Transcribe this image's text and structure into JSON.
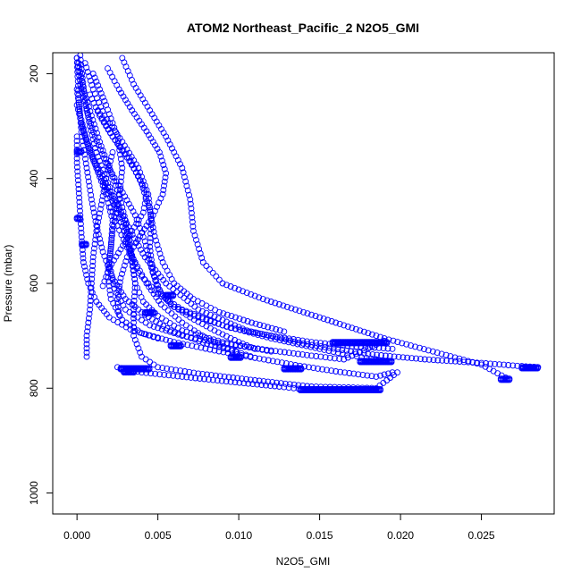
{
  "chart_data": {
    "type": "scatter",
    "title": "ATOM2 Northeast_Pacific_2 N2O5_GMI",
    "xlabel": "N2O5_GMI",
    "ylabel": "Pressure (mbar)",
    "xlim": [
      -0.0015,
      0.0295
    ],
    "ylim": [
      1040,
      160
    ],
    "y_reversed": true,
    "x_ticks": [
      "0.000",
      "0.005",
      "0.010",
      "0.015",
      "0.020",
      "0.025"
    ],
    "y_ticks": [
      "200",
      "400",
      "600",
      "800",
      "1000"
    ],
    "grid": false,
    "legend": "none",
    "marker": "open-circle",
    "color": "#0000ff",
    "series": [
      {
        "points": [
          [
            0.0002,
            165
          ],
          [
            0.0003,
            200
          ],
          [
            0.0005,
            250
          ],
          [
            0.0008,
            300
          ],
          [
            0.0012,
            350
          ],
          [
            0.0018,
            400
          ],
          [
            0.0025,
            450
          ],
          [
            0.0033,
            500
          ],
          [
            0.0042,
            550
          ],
          [
            0.0055,
            600
          ],
          [
            0.0075,
            650
          ],
          [
            0.0105,
            690
          ],
          [
            0.014,
            715
          ],
          [
            0.018,
            735
          ],
          [
            0.0215,
            745
          ],
          [
            0.025,
            752
          ],
          [
            0.0275,
            758
          ],
          [
            0.0285,
            760
          ]
        ]
      },
      {
        "points": [
          [
            0.0028,
            170
          ],
          [
            0.0035,
            220
          ],
          [
            0.0045,
            270
          ],
          [
            0.0055,
            320
          ],
          [
            0.0065,
            380
          ],
          [
            0.007,
            440
          ],
          [
            0.0072,
            500
          ],
          [
            0.0078,
            560
          ],
          [
            0.009,
            600
          ],
          [
            0.0115,
            630
          ],
          [
            0.014,
            655
          ],
          [
            0.0165,
            680
          ],
          [
            0.019,
            705
          ],
          [
            0.022,
            730
          ],
          [
            0.025,
            755
          ],
          [
            0.0265,
            780
          ]
        ]
      },
      {
        "points": [
          [
            0.0001,
            180
          ],
          [
            0.0004,
            230
          ],
          [
            0.0009,
            280
          ],
          [
            0.0014,
            330
          ],
          [
            0.002,
            380
          ],
          [
            0.0026,
            430
          ],
          [
            0.003,
            480
          ],
          [
            0.0032,
            530
          ],
          [
            0.0038,
            580
          ],
          [
            0.005,
            620
          ],
          [
            0.0065,
            650
          ],
          [
            0.009,
            680
          ],
          [
            0.012,
            705
          ],
          [
            0.015,
            725
          ],
          [
            0.017,
            738
          ],
          [
            0.0185,
            745
          ]
        ]
      },
      {
        "points": [
          [
            0.001,
            200
          ],
          [
            0.0018,
            260
          ],
          [
            0.0025,
            320
          ],
          [
            0.0028,
            380
          ],
          [
            0.0026,
            440
          ],
          [
            0.0022,
            500
          ],
          [
            0.002,
            560
          ],
          [
            0.0023,
            610
          ],
          [
            0.003,
            650
          ],
          [
            0.0045,
            680
          ],
          [
            0.0065,
            700
          ],
          [
            0.009,
            715
          ],
          [
            0.012,
            728
          ],
          [
            0.0145,
            738
          ],
          [
            0.0165,
            745
          ],
          [
            0.019,
            710
          ]
        ]
      },
      {
        "points": [
          [
            0.0,
            230
          ],
          [
            0.0002,
            280
          ],
          [
            0.0006,
            330
          ],
          [
            0.0012,
            380
          ],
          [
            0.0018,
            430
          ],
          [
            0.0022,
            480
          ],
          [
            0.0021,
            530
          ],
          [
            0.0019,
            580
          ],
          [
            0.0021,
            630
          ],
          [
            0.0028,
            670
          ],
          [
            0.004,
            695
          ],
          [
            0.006,
            712
          ],
          [
            0.0085,
            728
          ],
          [
            0.011,
            742
          ],
          [
            0.0135,
            756
          ],
          [
            0.016,
            768
          ],
          [
            0.0185,
            778
          ],
          [
            0.0195,
            770
          ]
        ]
      },
      {
        "points": [
          [
            0.0005,
            180
          ],
          [
            0.001,
            230
          ],
          [
            0.0017,
            280
          ],
          [
            0.0028,
            330
          ],
          [
            0.0038,
            380
          ],
          [
            0.0044,
            430
          ],
          [
            0.0046,
            480
          ],
          [
            0.0045,
            530
          ],
          [
            0.0047,
            580
          ],
          [
            0.0052,
            620
          ],
          [
            0.006,
            645
          ],
          [
            0.0075,
            665
          ],
          [
            0.0095,
            685
          ],
          [
            0.012,
            700
          ],
          [
            0.0145,
            712
          ],
          [
            0.017,
            720
          ],
          [
            0.0195,
            725
          ]
        ]
      },
      {
        "points": [
          [
            0.0,
            260
          ],
          [
            0.0004,
            310
          ],
          [
            0.001,
            360
          ],
          [
            0.0018,
            410
          ],
          [
            0.0026,
            460
          ],
          [
            0.0032,
            510
          ],
          [
            0.0034,
            560
          ],
          [
            0.0036,
            600
          ],
          [
            0.0041,
            635
          ],
          [
            0.005,
            662
          ],
          [
            0.0065,
            690
          ],
          [
            0.009,
            712
          ],
          [
            0.012,
            730
          ]
        ]
      },
      {
        "points": [
          [
            0.0,
            170
          ],
          [
            0.0002,
            220
          ],
          [
            0.0006,
            270
          ],
          [
            0.0011,
            320
          ],
          [
            0.0018,
            370
          ],
          [
            0.0027,
            420
          ],
          [
            0.0036,
            470
          ],
          [
            0.0042,
            520
          ],
          [
            0.0046,
            570
          ],
          [
            0.005,
            610
          ],
          [
            0.0058,
            640
          ],
          [
            0.007,
            665
          ],
          [
            0.0085,
            690
          ],
          [
            0.01,
            712
          ],
          [
            0.011,
            725
          ]
        ]
      },
      {
        "points": [
          [
            0.0003,
            300
          ],
          [
            0.0008,
            350
          ],
          [
            0.0015,
            400
          ],
          [
            0.0023,
            450
          ],
          [
            0.0029,
            500
          ],
          [
            0.0034,
            550
          ],
          [
            0.0036,
            600
          ],
          [
            0.0035,
            650
          ],
          [
            0.0035,
            700
          ],
          [
            0.004,
            740
          ],
          [
            0.005,
            760
          ],
          [
            0.0075,
            772
          ],
          [
            0.011,
            785
          ],
          [
            0.0145,
            797
          ],
          [
            0.0185,
            800
          ],
          [
            0.0198,
            770
          ]
        ]
      },
      {
        "points": [
          [
            0.0022,
            350
          ],
          [
            0.0018,
            400
          ],
          [
            0.0015,
            450
          ],
          [
            0.0012,
            500
          ],
          [
            0.001,
            550
          ],
          [
            0.0009,
            600
          ],
          [
            0.0008,
            650
          ],
          [
            0.0006,
            700
          ],
          [
            0.0006,
            740
          ]
        ]
      },
      {
        "points": [
          [
            0.0021,
            455
          ],
          [
            0.0025,
            490
          ],
          [
            0.003,
            525
          ],
          [
            0.0036,
            560
          ],
          [
            0.0043,
            600
          ],
          [
            0.0052,
            640
          ],
          [
            0.0065,
            675
          ],
          [
            0.008,
            705
          ],
          [
            0.0096,
            728
          ],
          [
            0.011,
            742
          ]
        ]
      },
      {
        "points": [
          [
            0.0025,
            760
          ],
          [
            0.004,
            770
          ],
          [
            0.0065,
            778
          ],
          [
            0.0095,
            788
          ],
          [
            0.0125,
            797
          ],
          [
            0.014,
            802
          ],
          [
            0.0165,
            802
          ],
          [
            0.0185,
            802
          ]
        ]
      },
      {
        "points": [
          [
            0.0,
            170
          ],
          [
            0.0001,
            250
          ],
          [
            0.0003,
            320
          ],
          [
            0.0006,
            380
          ],
          [
            0.0009,
            440
          ],
          [
            0.0012,
            490
          ],
          [
            0.0016,
            540
          ],
          [
            0.0022,
            590
          ],
          [
            0.003,
            630
          ],
          [
            0.0042,
            660
          ],
          [
            0.0058,
            690
          ],
          [
            0.0078,
            713
          ],
          [
            0.0098,
            730
          ]
        ]
      },
      {
        "points": [
          [
            0.0013,
            270
          ],
          [
            0.0022,
            320
          ],
          [
            0.0032,
            360
          ],
          [
            0.004,
            410
          ],
          [
            0.0045,
            460
          ],
          [
            0.0048,
            510
          ],
          [
            0.0053,
            560
          ],
          [
            0.006,
            600
          ],
          [
            0.0072,
            630
          ],
          [
            0.0088,
            655
          ],
          [
            0.0108,
            675
          ],
          [
            0.0128,
            692
          ]
        ]
      },
      {
        "points": [
          [
            0.0019,
            190
          ],
          [
            0.0026,
            230
          ],
          [
            0.0034,
            270
          ],
          [
            0.0043,
            310
          ],
          [
            0.0051,
            350
          ],
          [
            0.0055,
            390
          ],
          [
            0.0053,
            430
          ],
          [
            0.0047,
            470
          ],
          [
            0.0039,
            510
          ],
          [
            0.0031,
            550
          ],
          [
            0.0027,
            590
          ],
          [
            0.0025,
            630
          ],
          [
            0.0026,
            660
          ]
        ]
      },
      {
        "points": [
          [
            0.0008,
            240
          ],
          [
            0.0014,
            280
          ],
          [
            0.0022,
            320
          ],
          [
            0.0031,
            360
          ],
          [
            0.0038,
            395
          ],
          [
            0.0043,
            430
          ],
          [
            0.0041,
            465
          ],
          [
            0.0034,
            500
          ],
          [
            0.0027,
            535
          ],
          [
            0.002,
            570
          ],
          [
            0.0016,
            605
          ]
        ]
      },
      {
        "points": [
          [
            0.0,
            320
          ],
          [
            0.0,
            370
          ],
          [
            0.0001,
            420
          ],
          [
            0.0002,
            470
          ],
          [
            0.0003,
            520
          ],
          [
            0.0004,
            560
          ],
          [
            0.0007,
            600
          ],
          [
            0.0012,
            635
          ],
          [
            0.002,
            665
          ],
          [
            0.0033,
            688
          ],
          [
            0.005,
            705
          ]
        ]
      }
    ],
    "clusters": [
      {
        "y": 762,
        "x_range": [
          0.0027,
          0.0045
        ]
      },
      {
        "y": 768,
        "x_range": [
          0.0029,
          0.0036
        ]
      },
      {
        "y": 740,
        "x_range": [
          0.0095,
          0.0102
        ]
      },
      {
        "y": 762,
        "x_range": [
          0.0128,
          0.0139
        ]
      },
      {
        "y": 712,
        "x_range": [
          0.0158,
          0.0192
        ]
      },
      {
        "y": 748,
        "x_range": [
          0.0175,
          0.0195
        ]
      },
      {
        "y": 802,
        "x_range": [
          0.0138,
          0.0188
        ]
      },
      {
        "y": 760,
        "x_range": [
          0.0275,
          0.0285
        ]
      },
      {
        "y": 782,
        "x_range": [
          0.0262,
          0.0268
        ]
      },
      {
        "y": 718,
        "x_range": [
          0.0058,
          0.0065
        ]
      },
      {
        "y": 622,
        "x_range": [
          0.0055,
          0.006
        ]
      },
      {
        "y": 655,
        "x_range": [
          0.0042,
          0.0048
        ]
      },
      {
        "y": 348,
        "x_range": [
          0.0,
          0.0003
        ]
      },
      {
        "y": 475,
        "x_range": [
          0.0,
          0.0002
        ]
      },
      {
        "y": 525,
        "x_range": [
          0.0003,
          0.0006
        ]
      }
    ]
  }
}
